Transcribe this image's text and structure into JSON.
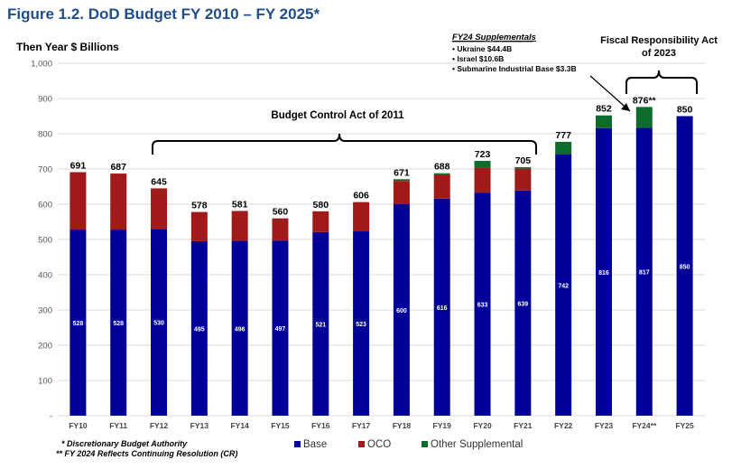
{
  "figure_title": "Figure 1.2.  DoD Budget FY 2010 – FY 2025*",
  "chart_data": {
    "type": "bar",
    "stacked": true,
    "ylabel": "Then Year $ Billions",
    "ylim": [
      0,
      1000
    ],
    "yticks": [
      "-",
      "100",
      "200",
      "300",
      "400",
      "500",
      "600",
      "700",
      "800",
      "900",
      "1,000"
    ],
    "categories": [
      "FY10",
      "FY11",
      "FY12",
      "FY13",
      "FY14",
      "FY15",
      "FY16",
      "FY17",
      "FY18",
      "FY19",
      "FY20",
      "FY21",
      "FY22",
      "FY23",
      "FY24**",
      "FY25"
    ],
    "series": [
      {
        "name": "Base",
        "color": "#000099",
        "values": [
          528,
          528,
          530,
          495,
          496,
          497,
          521,
          523,
          600,
          616,
          633,
          639,
          742,
          816,
          817,
          850
        ],
        "labels": [
          "528",
          "528",
          "530",
          "495",
          "496",
          "497",
          "521",
          "523",
          "600",
          "616",
          "633",
          "639",
          "742",
          "816",
          "817",
          "850"
        ]
      },
      {
        "name": "OCO",
        "color": "#a11a1a",
        "values": [
          163,
          159,
          115,
          83,
          85,
          62,
          59,
          83,
          66,
          69,
          71,
          62,
          0,
          0,
          0,
          0
        ]
      },
      {
        "name": "Other Supplemental",
        "color": "#0d6b2c",
        "values": [
          0,
          0,
          0,
          0,
          0,
          1,
          0,
          0,
          5,
          3,
          19,
          4,
          35,
          36,
          59,
          0
        ]
      }
    ],
    "totals": [
      "691",
      "687",
      "645",
      "578",
      "581",
      "560",
      "580",
      "606",
      "671",
      "688",
      "723",
      "705",
      "777",
      "852",
      "876**",
      "850"
    ],
    "legend_position": "bottom",
    "annotations": {
      "bca": {
        "text": "Budget Control Act of 2011"
      },
      "supplementals": {
        "title": "FY24 Supplementals",
        "items": [
          "• Ukraine $44.4B",
          "• Israel $10.6B",
          "• Submarine Industrial Base $3.3B"
        ]
      },
      "fra": {
        "line1": "Fiscal Responsibility Act",
        "line2": "of 2023"
      }
    },
    "footnotes": [
      "* Discretionary Budget Authority",
      "** FY 2024 Reflects Continuing Resolution (CR)"
    ]
  }
}
